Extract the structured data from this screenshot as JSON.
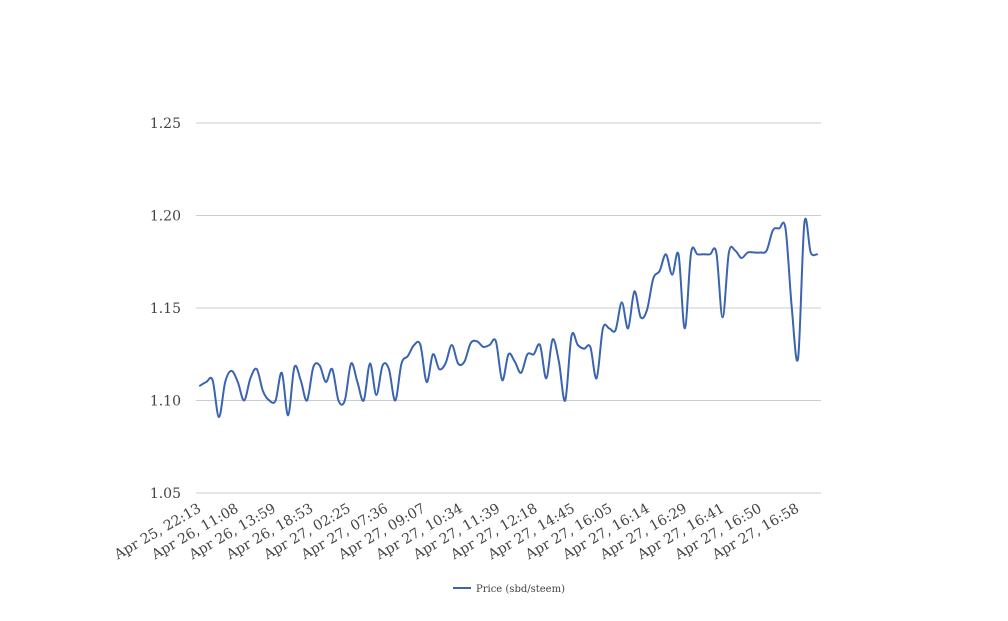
{
  "chart_data": {
    "type": "line",
    "title": "",
    "xlabel": "",
    "ylabel": "",
    "ylim": [
      1.05,
      1.25
    ],
    "yticks": [
      "1.05",
      "1.10",
      "1.15",
      "1.20",
      "1.25"
    ],
    "xtick_labels": [
      "Apr 25, 22:13",
      "Apr 26, 11:08",
      "Apr 26, 13:59",
      "Apr 26, 18:53",
      "Apr 27, 02:25",
      "Apr 27, 07:36",
      "Apr 27, 09:07",
      "Apr 27, 10:34",
      "Apr 27, 11:39",
      "Apr 27, 12:18",
      "Apr 27, 14:45",
      "Apr 27, 16:05",
      "Apr 27, 16:14",
      "Apr 27, 16:29",
      "Apr 27, 16:41",
      "Apr 27, 16:50",
      "Apr 27, 16:58"
    ],
    "grid": true,
    "legend_position": "bottom",
    "series": [
      {
        "name": "Price (sbd/steem)",
        "color": "#3a64b0",
        "values": [
          1.108,
          1.11,
          1.111,
          1.091,
          1.11,
          1.116,
          1.11,
          1.1,
          1.112,
          1.117,
          1.105,
          1.1,
          1.1,
          1.115,
          1.092,
          1.118,
          1.111,
          1.1,
          1.118,
          1.119,
          1.11,
          1.117,
          1.1,
          1.1,
          1.12,
          1.11,
          1.1,
          1.12,
          1.103,
          1.119,
          1.117,
          1.1,
          1.12,
          1.124,
          1.13,
          1.13,
          1.11,
          1.125,
          1.117,
          1.12,
          1.13,
          1.12,
          1.121,
          1.131,
          1.132,
          1.129,
          1.13,
          1.132,
          1.111,
          1.125,
          1.121,
          1.115,
          1.125,
          1.125,
          1.13,
          1.112,
          1.133,
          1.121,
          1.1,
          1.135,
          1.13,
          1.128,
          1.129,
          1.112,
          1.139,
          1.139,
          1.138,
          1.153,
          1.139,
          1.159,
          1.145,
          1.149,
          1.166,
          1.17,
          1.179,
          1.168,
          1.179,
          1.139,
          1.18,
          1.179,
          1.179,
          1.179,
          1.18,
          1.145,
          1.18,
          1.181,
          1.177,
          1.18,
          1.18,
          1.18,
          1.181,
          1.192,
          1.193,
          1.193,
          1.15,
          1.123,
          1.196,
          1.18,
          1.179
        ]
      }
    ]
  }
}
